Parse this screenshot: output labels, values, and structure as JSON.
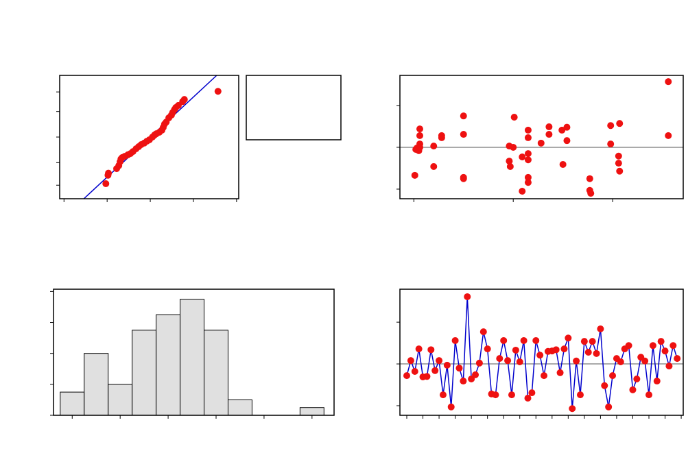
{
  "chart_data": [
    {
      "type": "scatter",
      "series": [
        {
          "color": "#ee1111",
          "x": [
            -1.03,
            -0.98,
            -0.97,
            -0.78,
            -0.73,
            -0.7,
            -0.68,
            -0.65,
            -0.59,
            -0.52,
            -0.46,
            -0.4,
            -0.33,
            -0.27,
            -0.21,
            -0.14,
            -0.08,
            -0.02,
            0.05,
            0.1,
            0.14,
            0.21,
            0.27,
            0.3,
            0.33,
            0.37,
            0.43,
            0.49,
            0.52,
            0.56,
            0.59,
            0.65,
            0.75,
            0.79,
            1.57
          ],
          "y": [
            -1.55,
            -1.27,
            -1.2,
            -1.05,
            -0.95,
            -0.82,
            -0.73,
            -0.68,
            -0.64,
            -0.59,
            -0.55,
            -0.48,
            -0.39,
            -0.32,
            -0.25,
            -0.2,
            -0.14,
            -0.09,
            0.0,
            0.07,
            0.11,
            0.16,
            0.23,
            0.32,
            0.43,
            0.5,
            0.64,
            0.73,
            0.82,
            0.91,
            0.98,
            1.05,
            1.18,
            1.25,
            1.52
          ]
        }
      ],
      "fit_line": {
        "color": "#0000cc",
        "x": [
          -1.54,
          1.54
        ],
        "y": [
          -2.05,
          2.05
        ]
      },
      "xlim": [
        -2.1,
        2.05
      ],
      "xticks": [
        -2,
        -1,
        0,
        1,
        2
      ],
      "ylim": [
        -2.05,
        2.05
      ],
      "yticks": [
        -1.6,
        -0.85,
        0,
        0.85,
        1.5
      ]
    },
    {
      "type": "scatter",
      "series": [
        {
          "color": "#ee1111",
          "x": [
            0.01,
            0.02,
            0.03,
            0.05,
            0.06,
            0.06,
            0.06,
            0.06,
            0.2,
            0.2,
            0.28,
            0.28,
            0.5,
            0.5,
            0.5,
            0.5,
            0.96,
            0.96,
            0.97,
            1.0,
            1.01,
            1.09,
            1.09,
            1.15,
            1.15,
            1.15,
            1.15,
            1.15,
            1.15,
            1.28,
            1.36,
            1.36,
            1.49,
            1.5,
            1.54,
            1.54,
            1.77,
            1.77,
            1.78,
            1.98,
            1.98,
            2.06,
            2.06,
            2.07,
            2.07,
            2.56,
            2.56
          ],
          "y": [
            -0.67,
            -0.05,
            -0.02,
            -0.08,
            0.08,
            0.28,
            0.44,
            0.0,
            -0.46,
            0.03,
            0.28,
            0.23,
            0.75,
            0.31,
            -0.72,
            -0.75,
            0.03,
            -0.33,
            -0.46,
            0.0,
            0.72,
            -0.23,
            -1.05,
            0.41,
            0.23,
            -0.15,
            -0.3,
            -0.72,
            -0.84,
            0.1,
            0.31,
            0.49,
            0.41,
            -0.41,
            0.48,
            0.16,
            -0.75,
            -1.03,
            -1.1,
            0.52,
            0.08,
            -0.21,
            -0.38,
            0.57,
            -0.57,
            1.57,
            0.28
          ]
        }
      ],
      "refline": 0,
      "xlim": [
        -0.14,
        2.71
      ],
      "xticks": [
        0,
        1,
        2
      ],
      "ylim": [
        -1.23,
        1.72
      ],
      "yticks": [
        -1,
        0,
        1
      ]
    },
    {
      "type": "histogram",
      "color": "#e0e0e0",
      "bins": [
        -1.25,
        -0.75,
        -0.25,
        0.25,
        0.75,
        1.25,
        1.75,
        2.25,
        2.75,
        3.25,
        3.75,
        4.25
      ],
      "counts": [
        3,
        8,
        4,
        11,
        13,
        15,
        11,
        2,
        0,
        0,
        1
      ],
      "xlim": [
        -1.39,
        4.46
      ],
      "xticks": [
        -1,
        0,
        1,
        2,
        3,
        4
      ],
      "ylim": [
        0,
        16.3
      ],
      "yticks": [
        0,
        4,
        8,
        12,
        16
      ]
    },
    {
      "type": "line",
      "color": "#0000cc",
      "marker_color": "#ee1111",
      "refline": 0,
      "values": [
        -0.28,
        0.08,
        -0.18,
        0.36,
        -0.31,
        -0.3,
        0.34,
        -0.16,
        0.08,
        -0.74,
        -0.03,
        -1.03,
        0.56,
        -0.1,
        -0.41,
        1.61,
        -0.36,
        -0.26,
        0.02,
        0.77,
        0.36,
        -0.72,
        -0.74,
        0.13,
        0.56,
        0.08,
        -0.74,
        0.33,
        0.05,
        0.56,
        -0.82,
        -0.69,
        0.56,
        0.21,
        -0.28,
        0.3,
        0.31,
        0.34,
        -0.21,
        0.36,
        0.62,
        -1.07,
        0.07,
        -0.74,
        0.54,
        0.28,
        0.54,
        0.25,
        0.84,
        -0.52,
        -1.03,
        -0.28,
        0.13,
        0.05,
        0.36,
        0.44,
        -0.62,
        -0.36,
        0.16,
        0.07,
        -0.74,
        0.44,
        -0.41,
        0.54,
        0.31,
        -0.05,
        0.44,
        0.13
      ],
      "xlim": [
        -0.7,
        69.5
      ],
      "xticks": [
        1,
        5,
        9,
        13,
        17,
        21,
        25,
        29,
        33,
        37,
        41,
        45,
        49,
        53,
        57,
        61,
        65,
        69
      ],
      "ylim": [
        -1.23,
        1.79
      ],
      "yticks": [
        -1,
        0,
        1
      ]
    }
  ]
}
